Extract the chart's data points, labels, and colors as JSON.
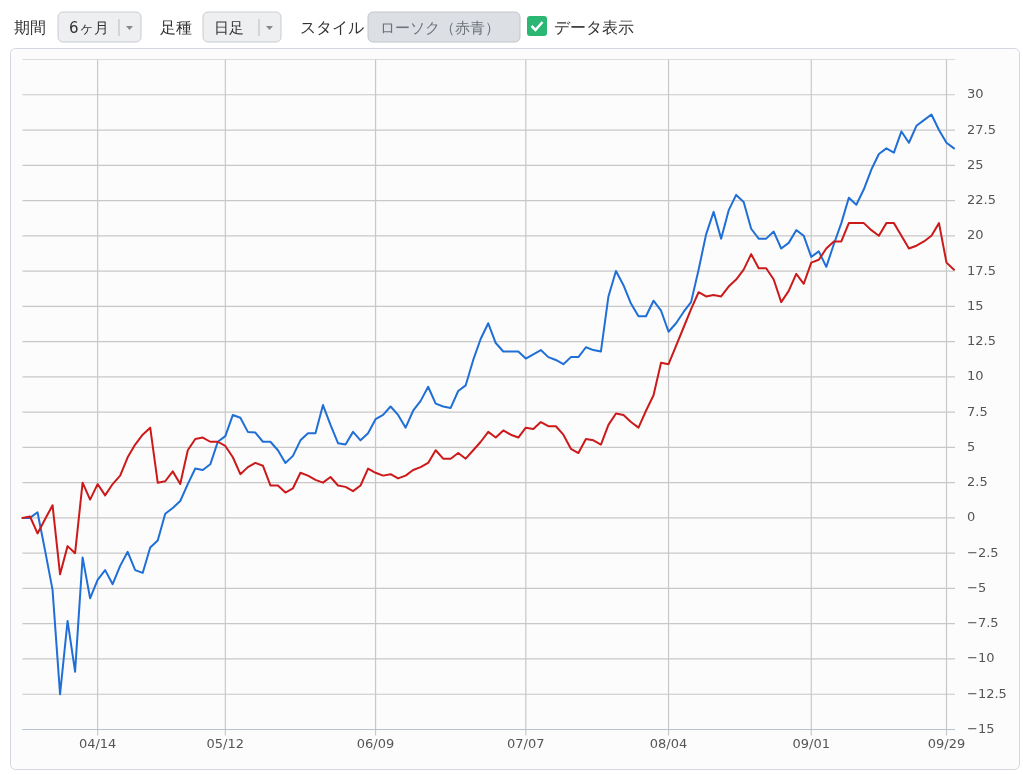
{
  "chart_data": {
    "type": "line",
    "annotations": [
      "期間",
      "6ヶ月",
      "足種",
      "日足",
      "スタイル",
      "ローソク（赤青）",
      "データ表示"
    ],
    "categories": [
      null,
      null,
      null,
      null,
      null,
      null,
      null,
      null,
      null,
      null,
      "04/14",
      null,
      null,
      null,
      null,
      null,
      null,
      null,
      null,
      null,
      null,
      null,
      null,
      null,
      null,
      null,
      null,
      "05/12",
      null,
      null,
      null,
      null,
      null,
      null,
      null,
      null,
      null,
      null,
      null,
      null,
      null,
      null,
      null,
      null,
      null,
      null,
      null,
      "06/09",
      null,
      null,
      null,
      null,
      null,
      null,
      null,
      null,
      null,
      null,
      null,
      null,
      null,
      null,
      null,
      null,
      null,
      null,
      null,
      "07/07",
      null,
      null,
      null,
      null,
      null,
      null,
      null,
      null,
      null,
      null,
      null,
      null,
      null,
      null,
      null,
      null,
      null,
      null,
      "08/04",
      null,
      null,
      null,
      null,
      null,
      null,
      null,
      null,
      null,
      null,
      null,
      null,
      null,
      null,
      null,
      null,
      null,
      null,
      "09/01",
      null,
      null,
      null,
      null,
      null,
      null,
      null,
      null,
      null,
      null,
      null,
      null,
      null,
      null,
      null,
      null,
      null,
      "09/29",
      null
    ],
    "series": [
      {
        "color": "#1f6fd6",
        "values": [
          0,
          0,
          0.4,
          -2.3,
          -5.1,
          -12.5,
          -7.3,
          -10.9,
          -2.8,
          -5.7,
          -4.4,
          -3.7,
          -4.7,
          -3.4,
          -2.4,
          -3.7,
          -3.9,
          -2.1,
          -1.6,
          0.3,
          0.7,
          1.2,
          2.4,
          3.5,
          3.4,
          3.8,
          5.4,
          5.8,
          7.3,
          7.1,
          6.1,
          6.05,
          5.4,
          5.4,
          4.8,
          3.9,
          4.4,
          5.5,
          6,
          6,
          8,
          6.6,
          5.3,
          5.2,
          6.1,
          5.5,
          6,
          7,
          7.3,
          7.9,
          7.3,
          6.4,
          7.6,
          8.3,
          9.3,
          8.1,
          7.9,
          7.8,
          9,
          9.4,
          11.2,
          12.7,
          13.8,
          12.4,
          11.8,
          11.8,
          11.8,
          11.3,
          11.6,
          11.9,
          11.4,
          11.2,
          10.9,
          11.4,
          11.4,
          12.1,
          11.9,
          11.8,
          15.7,
          17.5,
          16.5,
          15.2,
          14.3,
          14.3,
          15.4,
          14.7,
          13.2,
          13.8,
          14.6,
          15.3,
          17.6,
          20.1,
          21.7,
          19.8,
          21.8,
          22.9,
          22.4,
          20.5,
          19.8,
          19.8,
          20.3,
          19.1,
          19.5,
          20.4,
          20,
          18.5,
          18.9,
          17.8,
          19.4,
          20.9,
          22.7,
          22.2,
          23.3,
          24.7,
          25.8,
          26.2,
          25.9,
          27.4,
          26.6,
          27.8,
          28.2,
          28.6,
          27.5,
          26.6,
          26.2
        ]
      },
      {
        "color": "#cc1a1a",
        "values": [
          0,
          0.1,
          -1.1,
          -0.1,
          0.9,
          -4,
          -2,
          -2.5,
          2.5,
          1.3,
          2.4,
          1.6,
          2.4,
          3,
          4.3,
          5.2,
          5.9,
          6.4,
          2.5,
          2.6,
          3.3,
          2.4,
          4.8,
          5.6,
          5.7,
          5.4,
          5.4,
          5.1,
          4.3,
          3.1,
          3.6,
          3.9,
          3.7,
          2.3,
          2.3,
          1.8,
          2.1,
          3.2,
          3,
          2.7,
          2.5,
          2.9,
          2.3,
          2.2,
          1.9,
          2.3,
          3.5,
          3.2,
          3,
          3.1,
          2.8,
          3,
          3.4,
          3.6,
          3.9,
          4.8,
          4.2,
          4.2,
          4.6,
          4.2,
          4.8,
          5.4,
          6.1,
          5.7,
          6.2,
          5.9,
          5.7,
          6.4,
          6.3,
          6.8,
          6.5,
          6.5,
          5.9,
          4.9,
          4.6,
          5.6,
          5.5,
          5.2,
          6.6,
          7.4,
          7.3,
          6.8,
          6.4,
          7.6,
          8.7,
          11,
          10.9,
          12.2,
          13.5,
          14.8,
          16,
          15.7,
          15.8,
          15.7,
          16.4,
          16.9,
          17.6,
          18.7,
          17.7,
          17.7,
          16.9,
          15.3,
          16.1,
          17.3,
          16.6,
          18.1,
          18.3,
          19.1,
          19.6,
          19.6,
          20.9,
          20.9,
          20.9,
          20.4,
          20,
          20.9,
          20.9,
          20,
          19.1,
          19.3,
          19.6,
          20,
          20.9,
          18.1,
          17.6
        ]
      }
    ],
    "ylim": [
      -15,
      32.5
    ],
    "yticks": [
      -15,
      -12.5,
      -10,
      -7.5,
      -5,
      -2.5,
      0,
      2.5,
      5,
      7.5,
      10,
      12.5,
      15,
      17.5,
      20,
      22.5,
      25,
      27.5,
      30
    ],
    "grid": true
  }
}
